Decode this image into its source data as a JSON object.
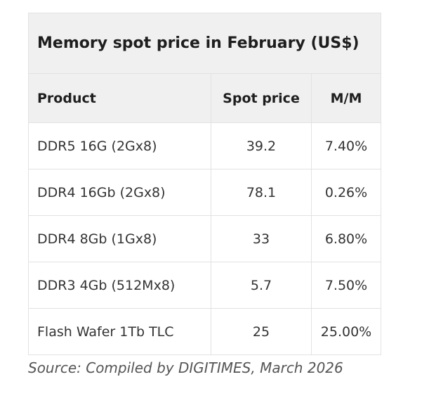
{
  "table": {
    "title": "Memory spot price in February (US$)",
    "headers": [
      "Product",
      "Spot price",
      "M/M"
    ],
    "rows": [
      [
        "DDR5 16G (2Gx8)",
        "39.2",
        "7.40%"
      ],
      [
        "DDR4 16Gb (2Gx8)",
        "78.1",
        "0.26%"
      ],
      [
        "DDR4 8Gb (1Gx8)",
        "33",
        "6.80%"
      ],
      [
        "DDR3 4Gb (512Mx8)",
        "5.7",
        "7.50%"
      ],
      [
        "Flash Wafer 1Tb TLC",
        "25",
        "25.00%"
      ]
    ]
  },
  "source": "Source: Compiled by DIGITIMES, March 2026"
}
